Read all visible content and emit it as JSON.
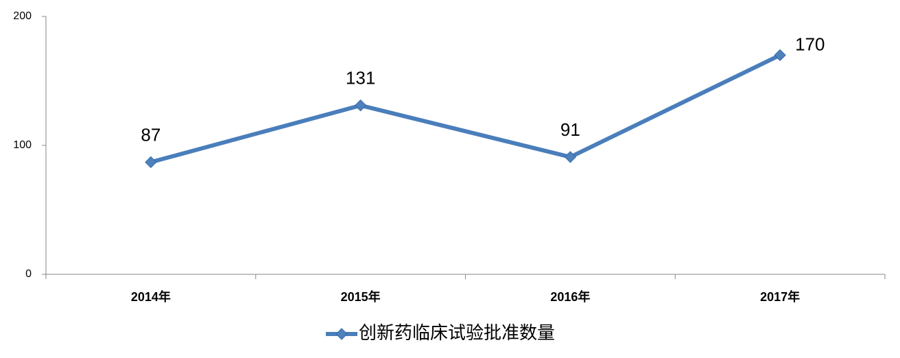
{
  "chart_data": {
    "type": "line",
    "categories": [
      "2014年",
      "2015年",
      "2016年",
      "2017年"
    ],
    "series": [
      {
        "name": "创新药临床试验批准数量",
        "color": "#4a7ebb",
        "values": [
          87,
          131,
          91,
          170
        ]
      }
    ],
    "ylim": [
      0,
      200
    ],
    "yticks": [
      0,
      100,
      200
    ],
    "grid": false,
    "legend": "bottom"
  }
}
